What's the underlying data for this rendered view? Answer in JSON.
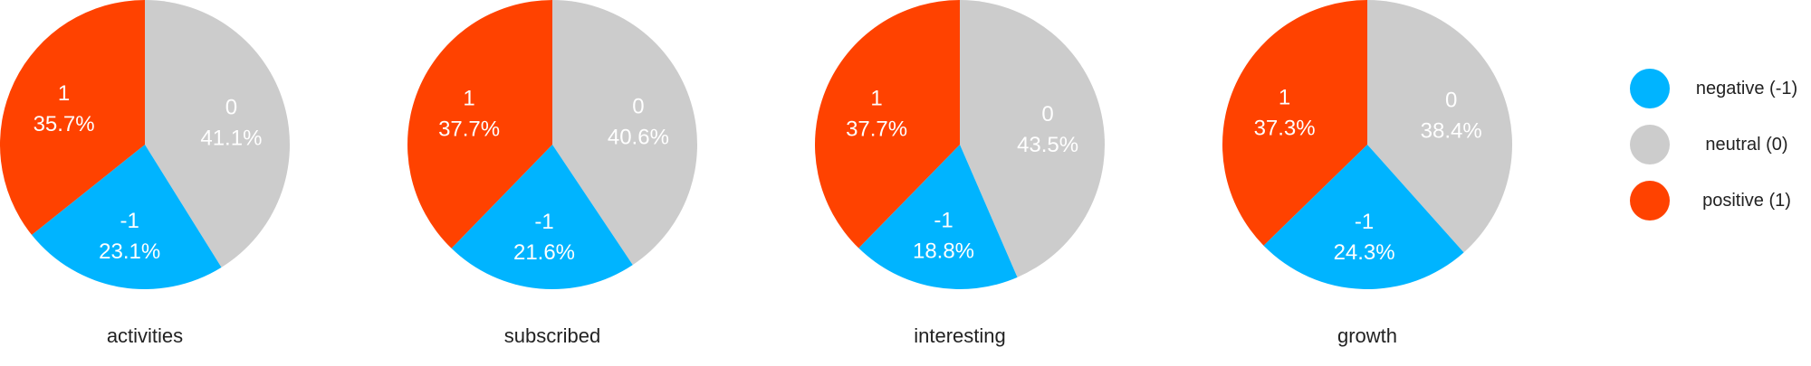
{
  "chart_data": {
    "type": "pie",
    "slice_order": [
      "0",
      "-1",
      "1"
    ],
    "charts": [
      {
        "title": "activities",
        "slices": [
          {
            "category": "0",
            "value": 41.1,
            "pct_label": "41.1%"
          },
          {
            "category": "-1",
            "value": 23.1,
            "pct_label": "23.1%"
          },
          {
            "category": "1",
            "value": 35.7,
            "pct_label": "35.7%"
          }
        ]
      },
      {
        "title": "subscribed",
        "slices": [
          {
            "category": "0",
            "value": 40.6,
            "pct_label": "40.6%"
          },
          {
            "category": "-1",
            "value": 21.6,
            "pct_label": "21.6%"
          },
          {
            "category": "1",
            "value": 37.7,
            "pct_label": "37.7%"
          }
        ]
      },
      {
        "title": "interesting",
        "slices": [
          {
            "category": "0",
            "value": 43.5,
            "pct_label": "43.5%"
          },
          {
            "category": "-1",
            "value": 18.8,
            "pct_label": "18.8%"
          },
          {
            "category": "1",
            "value": 37.7,
            "pct_label": "37.7%"
          }
        ]
      },
      {
        "title": "growth",
        "slices": [
          {
            "category": "0",
            "value": 38.4,
            "pct_label": "38.4%"
          },
          {
            "category": "-1",
            "value": 24.3,
            "pct_label": "24.3%"
          },
          {
            "category": "1",
            "value": 37.3,
            "pct_label": "37.3%"
          }
        ]
      }
    ],
    "legend": {
      "placement": "right",
      "items": [
        {
          "category": "-1",
          "label": "negative (-1)",
          "color": "#00b4ff"
        },
        {
          "category": "0",
          "label": "neutral (0)",
          "color": "#cccccc"
        },
        {
          "category": "1",
          "label": "positive (1)",
          "color": "#ff4200"
        }
      ]
    }
  }
}
